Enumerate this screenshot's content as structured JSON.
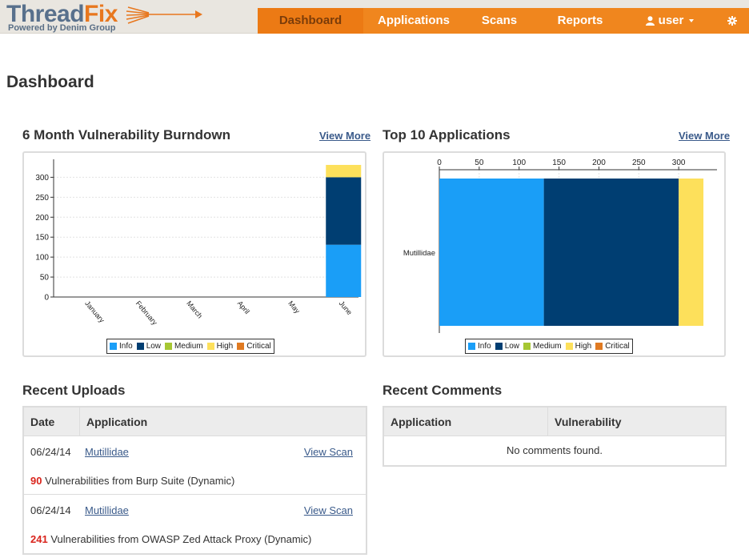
{
  "brand": {
    "name_part1": "Thread",
    "name_part2": "Fix",
    "tagline": "Powered by Denim Group"
  },
  "nav": {
    "dashboard": "Dashboard",
    "applications": "Applications",
    "scans": "Scans",
    "reports": "Reports",
    "user": "user",
    "icons": [
      "user-icon",
      "caret-down-icon",
      "gear-icon"
    ]
  },
  "page": {
    "title": "Dashboard"
  },
  "burndown": {
    "title": "6 Month Vulnerability Burndown",
    "view_more": "View More"
  },
  "top_apps": {
    "title": "Top 10 Applications",
    "view_more": "View More"
  },
  "colors": {
    "info": "#1a9ef7",
    "low": "#003e72",
    "medium": "#a6c733",
    "high": "#fde05b",
    "critical": "#e07a22",
    "nav": "#f0861e",
    "link": "#3a5a8a"
  },
  "legend": [
    "Info",
    "Low",
    "Medium",
    "High",
    "Critical"
  ],
  "chart_data": [
    {
      "type": "bar",
      "stacked": true,
      "orientation": "vertical",
      "categories": [
        "January",
        "February",
        "March",
        "April",
        "May",
        "June"
      ],
      "series": [
        {
          "name": "Info",
          "values": [
            0,
            0,
            0,
            0,
            0,
            131
          ]
        },
        {
          "name": "Low",
          "values": [
            0,
            0,
            0,
            0,
            0,
            169
          ]
        },
        {
          "name": "Medium",
          "values": [
            0,
            0,
            0,
            0,
            0,
            0
          ]
        },
        {
          "name": "High",
          "values": [
            0,
            0,
            0,
            0,
            0,
            31
          ]
        },
        {
          "name": "Critical",
          "values": [
            0,
            0,
            0,
            0,
            0,
            0
          ]
        }
      ],
      "yticks": [
        0,
        50,
        100,
        150,
        200,
        250,
        300
      ],
      "ylim": [
        0,
        345
      ],
      "grid": true,
      "legend_position": "bottom"
    },
    {
      "type": "bar",
      "stacked": true,
      "orientation": "horizontal",
      "categories": [
        "Mutillidae"
      ],
      "series": [
        {
          "name": "Info",
          "values": [
            131
          ]
        },
        {
          "name": "Low",
          "values": [
            169
          ]
        },
        {
          "name": "Medium",
          "values": [
            0
          ]
        },
        {
          "name": "High",
          "values": [
            31
          ]
        },
        {
          "name": "Critical",
          "values": [
            0
          ]
        }
      ],
      "xticks": [
        0,
        50,
        100,
        150,
        200,
        250,
        300
      ],
      "xlim": [
        0,
        348
      ],
      "axis_position": "top",
      "grid": true,
      "legend_position": "bottom"
    }
  ],
  "uploads": {
    "title": "Recent Uploads",
    "col_date": "Date",
    "col_application": "Application",
    "rows": [
      {
        "date": "06/24/14",
        "application": "Mutillidae",
        "view": "View Scan",
        "count": "90",
        "description": "Vulnerabilities from Burp Suite (Dynamic)"
      },
      {
        "date": "06/24/14",
        "application": "Mutillidae",
        "view": "View Scan",
        "count": "241",
        "description": "Vulnerabilities from OWASP Zed Attack Proxy (Dynamic)"
      }
    ]
  },
  "comments": {
    "title": "Recent Comments",
    "col_application": "Application",
    "col_vulnerability": "Vulnerability",
    "empty": "No comments found."
  }
}
